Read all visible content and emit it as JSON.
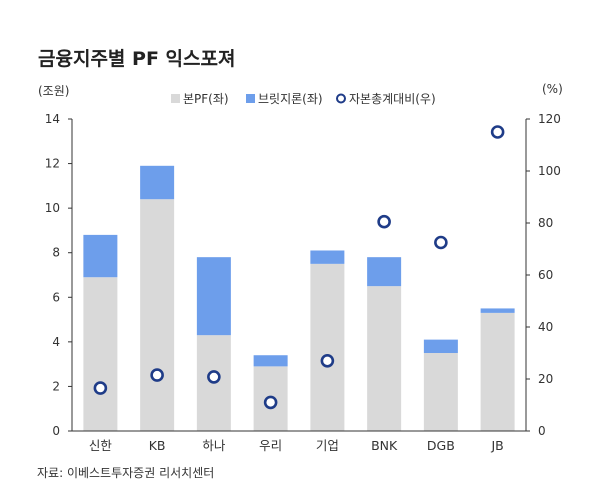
{
  "title": "금융지주별 PF 익스포져",
  "left_unit": "(조원)",
  "right_unit": "(%)",
  "source": "자료: 이베스트투자증권 리서치센터",
  "colors": {
    "main_pf": "#d9d9d9",
    "bridge": "#6d9eeb",
    "ratio_marker": "#1f3c88",
    "axis": "#333333"
  },
  "chart_data": {
    "type": "bar",
    "stacked": true,
    "categories": [
      "신한",
      "KB",
      "하나",
      "우리",
      "기업",
      "BNK",
      "DGB",
      "JB"
    ],
    "series": [
      {
        "name": "본PF(좌)",
        "axis": "left",
        "kind": "bar",
        "values": [
          6.9,
          10.4,
          4.3,
          2.9,
          7.5,
          6.5,
          3.5,
          5.3
        ]
      },
      {
        "name": "브릿지론(좌)",
        "axis": "left",
        "kind": "bar",
        "values": [
          1.9,
          1.5,
          3.5,
          0.5,
          0.6,
          1.3,
          0.6,
          0.2
        ]
      },
      {
        "name": "자본총계대비(우)",
        "axis": "right",
        "kind": "scatter",
        "values": [
          16.5,
          21.5,
          20.8,
          11,
          27,
          80.5,
          72.5,
          115
        ]
      }
    ],
    "left_axis": {
      "ylim": [
        0,
        14
      ],
      "ticks": [
        "0",
        "2",
        "4",
        "6",
        "8",
        "10",
        "12",
        "14"
      ]
    },
    "right_axis": {
      "ylim": [
        0,
        120
      ],
      "ticks": [
        "0",
        "20",
        "40",
        "60",
        "80",
        "100",
        "120"
      ]
    },
    "grid": false,
    "legend_position": "top"
  }
}
